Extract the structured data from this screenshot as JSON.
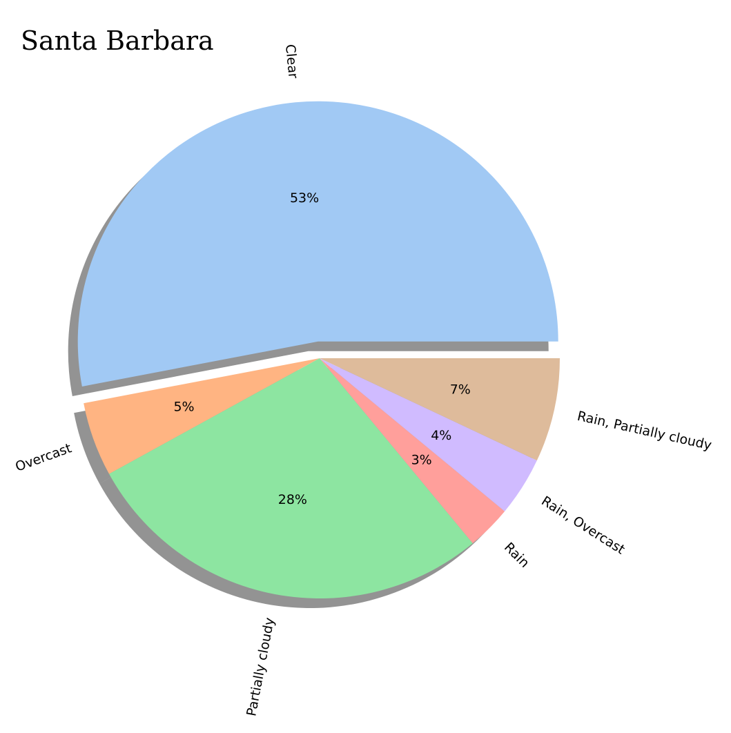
{
  "chart_data": {
    "type": "pie",
    "title": "Santa Barbara",
    "shadow": true,
    "start_angle_deg": 0,
    "direction": "counterclockwise",
    "slices": [
      {
        "label": "Clear",
        "value": 53,
        "pct_label": "53%",
        "color": "#a1c9f4",
        "explode": 0.1
      },
      {
        "label": "Overcast",
        "value": 5,
        "pct_label": "5%",
        "color": "#ffb482",
        "explode": 0
      },
      {
        "label": "Partially cloudy",
        "value": 28,
        "pct_label": "28%",
        "color": "#8de5a1",
        "explode": 0
      },
      {
        "label": "Rain",
        "value": 3,
        "pct_label": "3%",
        "color": "#ff9f9b",
        "explode": 0
      },
      {
        "label": "Rain, Overcast",
        "value": 4,
        "pct_label": "4%",
        "color": "#d0bbff",
        "explode": 0
      },
      {
        "label": "Rain, Partially cloudy",
        "value": 7,
        "pct_label": "7%",
        "color": "#debb9b",
        "explode": 0
      }
    ]
  }
}
